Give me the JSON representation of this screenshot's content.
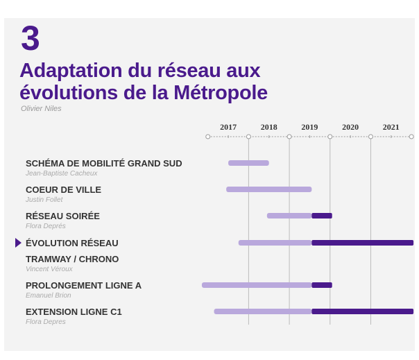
{
  "chart_data": {
    "type": "timeline",
    "number": "3",
    "title": [
      "Adaptation du réseau aux",
      "évolutions de la Métropole"
    ],
    "author": "Olivier Niles",
    "xlim": [
      2016.8,
      2022.1
    ],
    "xticks": [
      {
        "value": 2017.5,
        "label": "2017"
      },
      {
        "value": 2018.5,
        "label": "2018"
      },
      {
        "value": 2019.5,
        "label": "2019"
      },
      {
        "value": 2020.5,
        "label": "2020"
      },
      {
        "value": 2021.5,
        "label": "2021"
      }
    ],
    "grid": true,
    "colors": {
      "planned": "#b9a8dc",
      "active": "#4a1a8c"
    },
    "tasks": [
      {
        "name": "SCHÉMA DE MOBILITÉ GRAND SUD",
        "owner": "Jean-Baptiste Cacheux",
        "start": 2017.5,
        "end": 2018.5
      },
      {
        "name": "COEUR DE VILLE",
        "owner": "Justin Follet",
        "start": 2017.45,
        "end": 2019.55
      },
      {
        "name": "RÉSEAU SOIRÉE",
        "owner": "Flora Deprés",
        "start": 2018.45,
        "change": 2019.55,
        "end": 2020.05
      },
      {
        "name": "ÉVOLUTION RÉSEAU",
        "highlight": true,
        "start": 2017.75,
        "change": 2019.55,
        "end": 2022.05
      },
      {
        "name": "TRAMWAY / CHRONO",
        "owner": "Vincent Véroux"
      },
      {
        "name": "PROLONGEMENT LIGNE A",
        "owner": "Emanuel Brion",
        "start": 2016.85,
        "change": 2019.55,
        "end": 2020.05
      },
      {
        "name": "EXTENSION LIGNE C1",
        "owner": "Flora Depres",
        "start": 2017.15,
        "change": 2019.55,
        "end": 2022.05
      }
    ]
  }
}
